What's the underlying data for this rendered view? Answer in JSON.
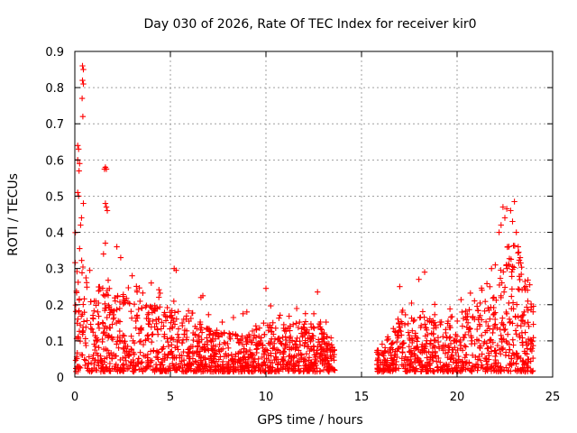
{
  "chart_data": {
    "type": "scatter",
    "title": "Day 030 of 2026, Rate Of TEC Index for receiver kir0",
    "xlabel": "GPS time / hours",
    "ylabel": "ROTI / TECUs",
    "xlim": [
      0,
      25
    ],
    "ylim": [
      0,
      0.9
    ],
    "xticks": [
      0,
      5,
      10,
      15,
      20,
      25
    ],
    "yticks": [
      0,
      0.1,
      0.2,
      0.3,
      0.4,
      0.5,
      0.6,
      0.7,
      0.8,
      0.9
    ],
    "xtick_labels": [
      "0",
      "5",
      "10",
      "15",
      "20",
      "25"
    ],
    "ytick_labels": [
      "0",
      "0.1",
      "0.2",
      "0.3",
      "0.4",
      "0.5",
      "0.6",
      "0.7",
      "0.8",
      "0.9"
    ],
    "grid": true,
    "marker": "+",
    "color": "#ff0000",
    "series": [
      {
        "name": "ROTI",
        "segments": [
          {
            "x_start": 0.0,
            "x_end": 13.6
          },
          {
            "x_start": 15.8,
            "x_end": 24.0
          }
        ],
        "envelope": {
          "x": [
            0.0,
            0.3,
            0.6,
            1.0,
            1.5,
            2.0,
            3.0,
            4.0,
            5.0,
            6.0,
            7.0,
            8.0,
            9.0,
            10.0,
            11.0,
            12.0,
            13.0,
            13.6,
            15.8,
            16.5,
            17.0,
            18.0,
            19.0,
            20.0,
            21.0,
            22.0,
            22.5,
            23.0,
            23.5,
            24.0
          ],
          "y": [
            0.35,
            0.33,
            0.28,
            0.25,
            0.24,
            0.22,
            0.2,
            0.19,
            0.18,
            0.15,
            0.12,
            0.11,
            0.12,
            0.14,
            0.13,
            0.14,
            0.12,
            0.07,
            0.06,
            0.1,
            0.14,
            0.16,
            0.14,
            0.16,
            0.18,
            0.22,
            0.3,
            0.32,
            0.25,
            0.2
          ]
        },
        "outliers": [
          {
            "x": 0.4,
            "y": 0.86
          },
          {
            "x": 0.45,
            "y": 0.85
          },
          {
            "x": 0.4,
            "y": 0.82
          },
          {
            "x": 0.45,
            "y": 0.81
          },
          {
            "x": 0.38,
            "y": 0.77
          },
          {
            "x": 0.42,
            "y": 0.72
          },
          {
            "x": 0.15,
            "y": 0.64
          },
          {
            "x": 0.2,
            "y": 0.63
          },
          {
            "x": 0.15,
            "y": 0.6
          },
          {
            "x": 0.25,
            "y": 0.59
          },
          {
            "x": 0.22,
            "y": 0.57
          },
          {
            "x": 0.15,
            "y": 0.51
          },
          {
            "x": 0.2,
            "y": 0.5
          },
          {
            "x": 0.45,
            "y": 0.48
          },
          {
            "x": 0.35,
            "y": 0.44
          },
          {
            "x": 0.3,
            "y": 0.42
          },
          {
            "x": 1.6,
            "y": 0.58
          },
          {
            "x": 1.65,
            "y": 0.575
          },
          {
            "x": 1.55,
            "y": 0.575
          },
          {
            "x": 1.6,
            "y": 0.48
          },
          {
            "x": 1.65,
            "y": 0.47
          },
          {
            "x": 1.7,
            "y": 0.46
          },
          {
            "x": 1.6,
            "y": 0.37
          },
          {
            "x": 1.5,
            "y": 0.34
          },
          {
            "x": 2.2,
            "y": 0.36
          },
          {
            "x": 2.4,
            "y": 0.33
          },
          {
            "x": 5.2,
            "y": 0.3
          },
          {
            "x": 5.3,
            "y": 0.295
          },
          {
            "x": 3.0,
            "y": 0.28
          },
          {
            "x": 4.0,
            "y": 0.26
          },
          {
            "x": 6.7,
            "y": 0.225
          },
          {
            "x": 6.6,
            "y": 0.22
          },
          {
            "x": 10.0,
            "y": 0.245
          },
          {
            "x": 12.7,
            "y": 0.235
          },
          {
            "x": 9.0,
            "y": 0.18
          },
          {
            "x": 8.8,
            "y": 0.175
          },
          {
            "x": 18.3,
            "y": 0.29
          },
          {
            "x": 18.0,
            "y": 0.27
          },
          {
            "x": 17.0,
            "y": 0.25
          },
          {
            "x": 22.4,
            "y": 0.47
          },
          {
            "x": 22.6,
            "y": 0.465
          },
          {
            "x": 22.8,
            "y": 0.46
          },
          {
            "x": 23.0,
            "y": 0.485
          },
          {
            "x": 22.5,
            "y": 0.44
          },
          {
            "x": 22.3,
            "y": 0.42
          },
          {
            "x": 22.2,
            "y": 0.4
          },
          {
            "x": 22.9,
            "y": 0.43
          },
          {
            "x": 23.1,
            "y": 0.4
          },
          {
            "x": 23.2,
            "y": 0.36
          },
          {
            "x": 23.3,
            "y": 0.33
          },
          {
            "x": 22.0,
            "y": 0.31
          },
          {
            "x": 21.8,
            "y": 0.3
          },
          {
            "x": 23.8,
            "y": 0.255
          },
          {
            "x": 21.3,
            "y": 0.24
          }
        ]
      }
    ]
  }
}
